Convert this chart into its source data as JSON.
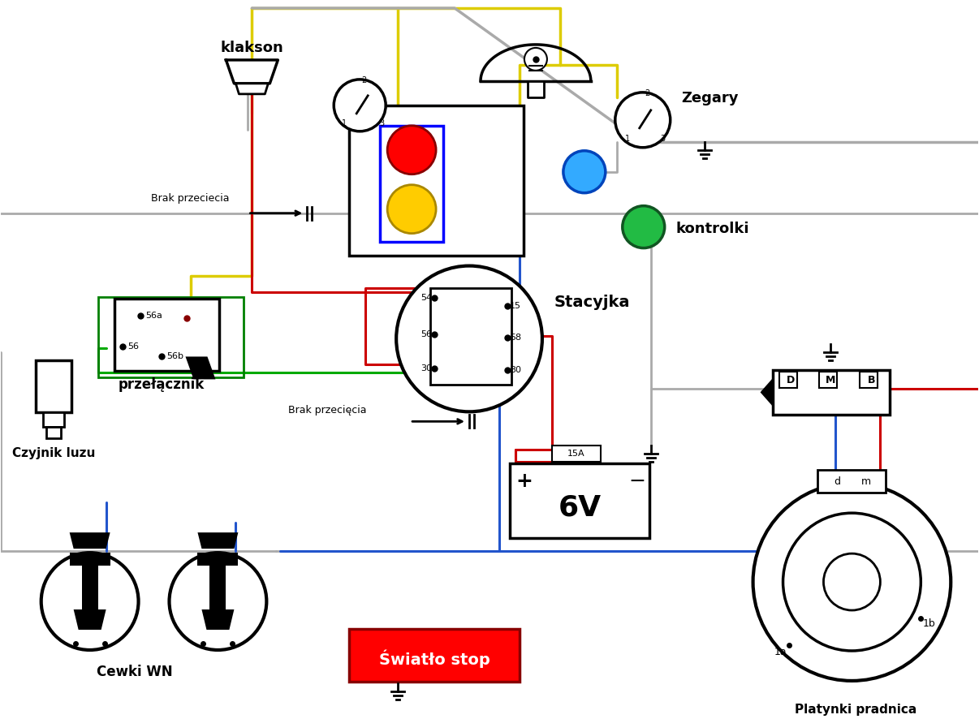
{
  "bg": "#ffffff",
  "Y": "#ddcc00",
  "GR": "#aaaaaa",
  "R": "#cc0000",
  "BL": "#2255cc",
  "GN": "#00aa00",
  "BK": "#000000",
  "labels": {
    "klakson": "klakson",
    "zegary": "Zegary",
    "kontrolki": "kontrolki",
    "stacyjka": "Stacyjka",
    "przelacznik": "przełącznik",
    "czyjnik": "Czyjnik luzu",
    "swiatlo": "Światło stop",
    "cewki": "Cewki WN",
    "platynki": "Platynki pradnica"
  }
}
